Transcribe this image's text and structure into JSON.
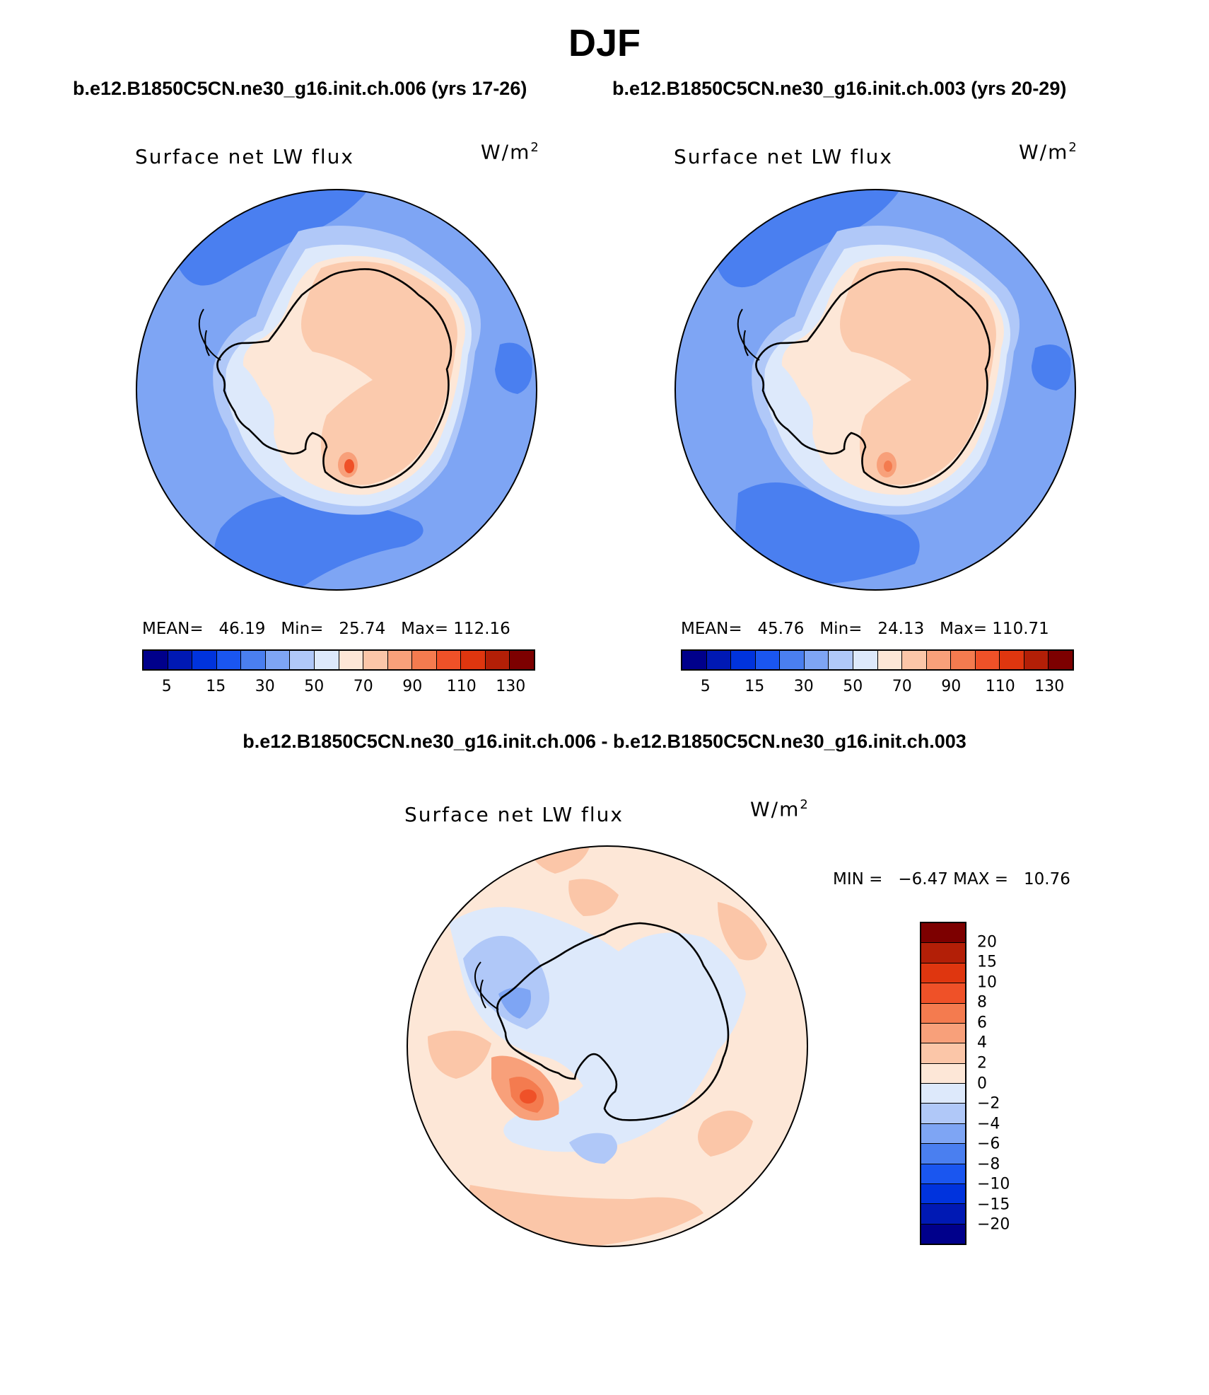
{
  "figure": {
    "season": "DJF",
    "case_a": "b.e12.B1850C5CN.ne30_g16.init.ch.006 (yrs 17-26)",
    "case_b": "b.e12.B1850C5CN.ne30_g16.init.ch.003 (yrs 20-29)",
    "diff_title": "b.e12.B1850C5CN.ne30_g16.init.ch.006 - b.e12.B1850C5CN.ne30_g16.init.ch.003"
  },
  "panels": [
    {
      "variable": "Surface net LW flux",
      "unit_base": "W/m",
      "unit_exp": "2",
      "mean_label": "MEAN=",
      "mean_value": "46.19",
      "min_label": "Min=",
      "min_value": "25.74",
      "max_label": "Max=",
      "max_value": "112.16"
    },
    {
      "variable": "Surface net LW flux",
      "unit_base": "W/m",
      "unit_exp": "2",
      "mean_label": "MEAN=",
      "mean_value": "45.76",
      "min_label": "Min=",
      "min_value": "24.13",
      "max_label": "Max=",
      "max_value": "110.71"
    },
    {
      "variable": "Surface net LW flux",
      "unit_base": "W/m",
      "unit_exp": "2",
      "min_label": "MIN =",
      "min_value": "−6.47",
      "max_label": "MAX =",
      "max_value": "10.76"
    }
  ],
  "colorbar_abs": {
    "colors": [
      "#00008b",
      "#0019b4",
      "#0033dd",
      "#1a56f0",
      "#4a7ff0",
      "#7ea5f4",
      "#b0c8f8",
      "#dde9fb",
      "#fde7d7",
      "#fbc6a8",
      "#f8a07a",
      "#f47b4f",
      "#ef5128",
      "#df360f",
      "#b31f07",
      "#7d0000"
    ],
    "tick_labels": [
      "5",
      "15",
      "30",
      "50",
      "70",
      "90",
      "110",
      "130"
    ]
  },
  "colorbar_diff": {
    "colors_top_to_bottom": [
      "#7d0000",
      "#b31f07",
      "#df360f",
      "#ef5128",
      "#f47b4f",
      "#f8a07a",
      "#fbc6a8",
      "#fde7d7",
      "#dde9fb",
      "#b0c8f8",
      "#7ea5f4",
      "#4a7ff0",
      "#1a56f0",
      "#0033dd",
      "#0019b4",
      "#00008b"
    ],
    "tick_labels": [
      "20",
      "15",
      "10",
      "8",
      "6",
      "4",
      "2",
      "0",
      "−2",
      "−4",
      "−6",
      "−8",
      "−10",
      "−15",
      "−20"
    ]
  }
}
